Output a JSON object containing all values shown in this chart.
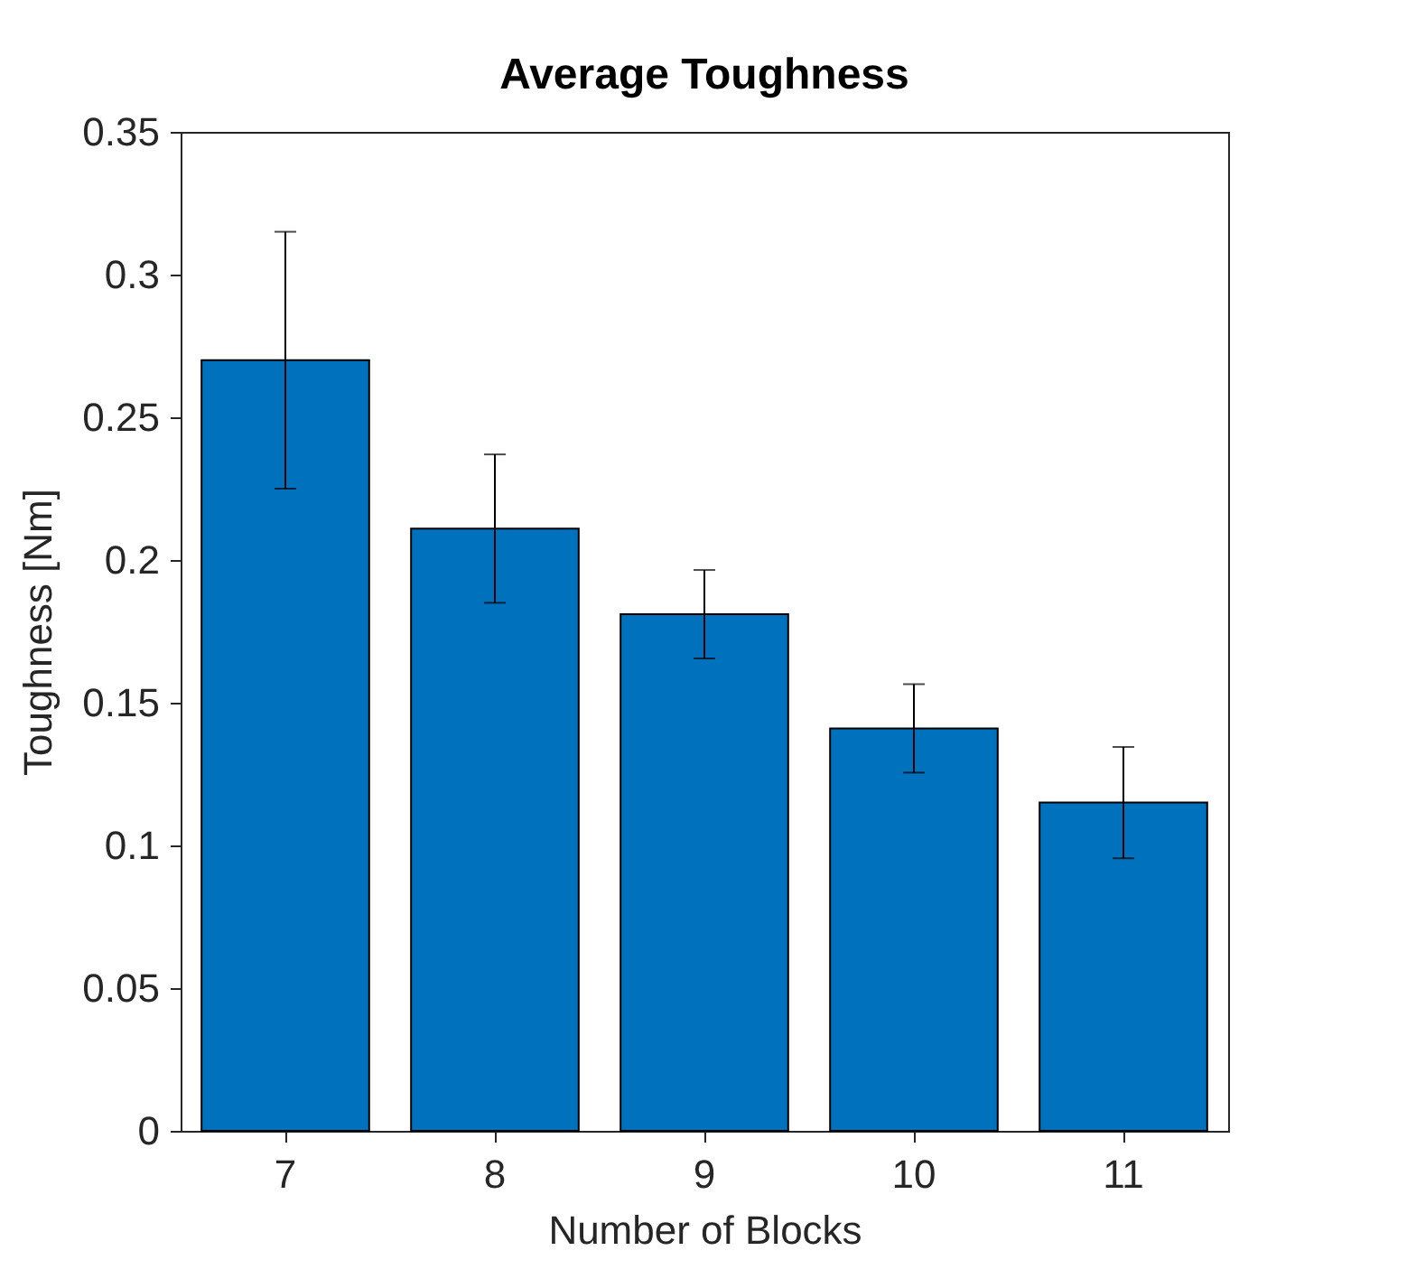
{
  "chart_data": {
    "type": "bar",
    "title": "Average Toughness",
    "xlabel": "Number of Blocks",
    "ylabel": "Toughness [Nm]",
    "categories": [
      "7",
      "8",
      "9",
      "10",
      "11"
    ],
    "values": [
      0.27,
      0.211,
      0.181,
      0.141,
      0.115
    ],
    "errors": [
      0.045,
      0.026,
      0.0155,
      0.0155,
      0.0195
    ],
    "color": "#0072bd",
    "ylim": [
      0,
      0.35
    ],
    "yticks": [
      0,
      0.05,
      0.1,
      0.15,
      0.2,
      0.25,
      0.3,
      0.35
    ],
    "grid": false
  }
}
